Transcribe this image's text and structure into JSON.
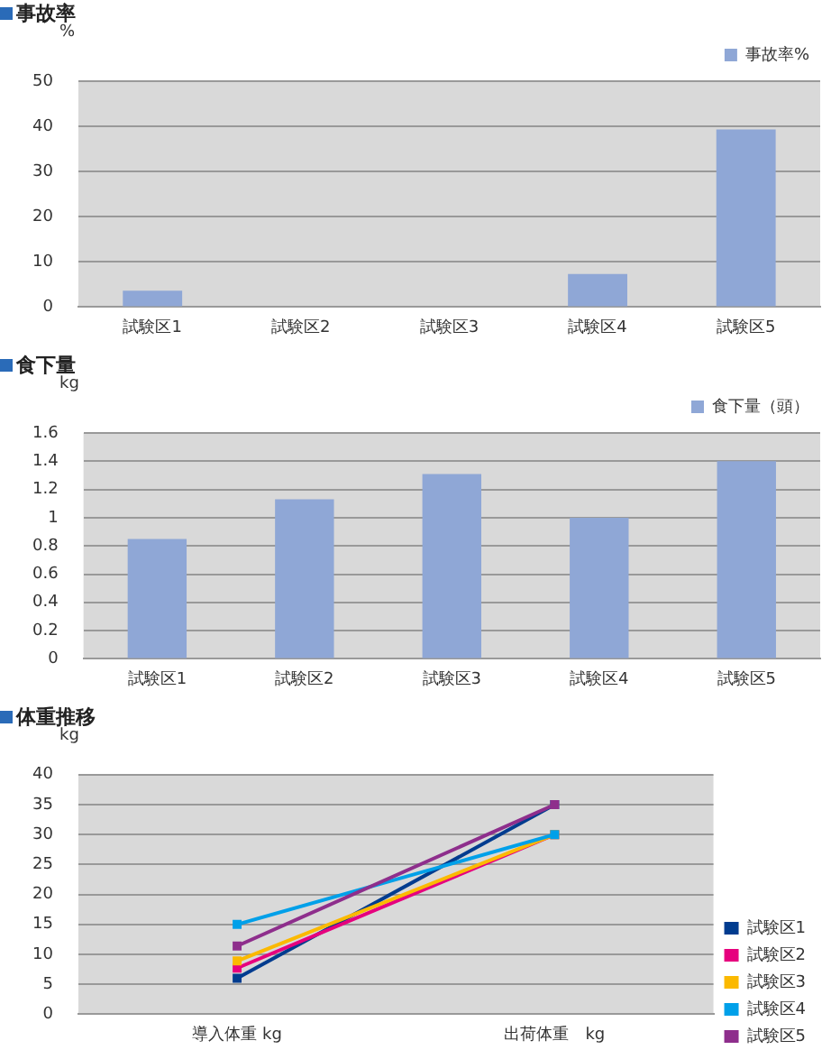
{
  "chart_data": [
    {
      "type": "bar",
      "title": "事故率",
      "ylabel": "%",
      "categories": [
        "試験区1",
        "試験区2",
        "試験区3",
        "試験区4",
        "試験区5"
      ],
      "series": [
        {
          "name": "事故率%",
          "color": "#8fa7d6",
          "values": [
            3.6,
            0,
            0,
            7.3,
            39.3
          ]
        }
      ],
      "ylim": [
        0,
        50
      ],
      "yticks": [
        0,
        10,
        20,
        30,
        40,
        50
      ],
      "grid": "y",
      "legend": "top right"
    },
    {
      "type": "bar",
      "title": "食下量",
      "ylabel": "kg",
      "categories": [
        "試験区1",
        "試験区2",
        "試験区3",
        "試験区4",
        "試験区5"
      ],
      "series": [
        {
          "name": "食下量（頭）",
          "color": "#8fa7d6",
          "values": [
            0.85,
            1.13,
            1.31,
            1.0,
            1.4
          ]
        }
      ],
      "ylim": [
        0,
        1.6
      ],
      "yticks": [
        {
          "value": 0,
          "label": "0"
        },
        {
          "value": 0.2,
          "label": "0.2"
        },
        {
          "value": 0.4,
          "label": "0.4"
        },
        {
          "value": 0.6,
          "label": "0.6"
        },
        {
          "value": 0.8,
          "label": "0.8"
        },
        {
          "value": 1,
          "label": "1"
        },
        {
          "value": 1.2,
          "label": "1.2"
        },
        {
          "value": 1.4,
          "label": "1.4"
        },
        {
          "value": 1.6,
          "label": "1.6"
        }
      ],
      "grid": "y",
      "legend": "top right"
    },
    {
      "type": "line",
      "title": "体重推移",
      "ylabel": "kg",
      "categories": [
        "導入体重 kg",
        "出荷体重　kg"
      ],
      "series": [
        {
          "name": "試験区1",
          "color": "#003c8f",
          "values": [
            6,
            35
          ]
        },
        {
          "name": "試験区2",
          "color": "#e6007e",
          "values": [
            7.7,
            30
          ]
        },
        {
          "name": "試験区3",
          "color": "#fbb900",
          "values": [
            8.9,
            30
          ]
        },
        {
          "name": "試験区4",
          "color": "#00a0e9",
          "values": [
            15,
            30
          ]
        },
        {
          "name": "試験区5",
          "color": "#8e2e8c",
          "values": [
            11.4,
            35
          ]
        }
      ],
      "ylim": [
        0,
        40
      ],
      "yticks": [
        0,
        5,
        10,
        15,
        20,
        25,
        30,
        35,
        40
      ],
      "grid": "y",
      "legend": "right",
      "marker": "square",
      "line_style": "solid"
    }
  ]
}
